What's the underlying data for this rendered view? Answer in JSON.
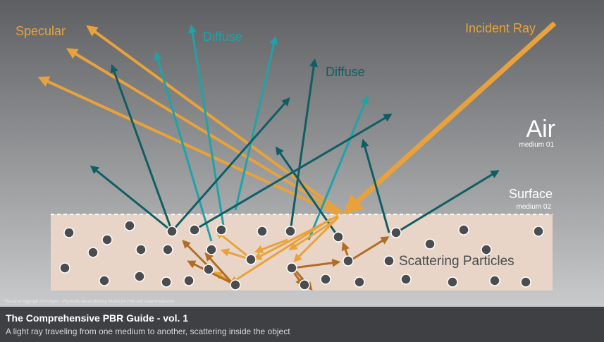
{
  "diagram": {
    "labels": {
      "specular": "Specular",
      "diffuse_1": "Diffuse",
      "diffuse_2": "Diffuse",
      "incident_ray": "Incident Ray",
      "air": "Air",
      "air_medium": "medium 01",
      "surface": "Surface",
      "surface_medium": "medium 02",
      "scattering_particles": "Scattering Particles",
      "citation": "*based on Siggraph 2010 Paper - Physically-Based Shading Models for Film and Game Production"
    },
    "colors": {
      "orange": "#e9a23b",
      "brown": "#b06d26",
      "teal_light": "#1fa3a8",
      "teal_dark": "#0f5e63",
      "particle": "#4a4c50",
      "medium": "#e8d5c7"
    }
  },
  "footer": {
    "title": "The Comprehensive PBR Guide - vol. 1",
    "subtitle": "A light ray traveling from one medium to another, scattering inside the object"
  }
}
